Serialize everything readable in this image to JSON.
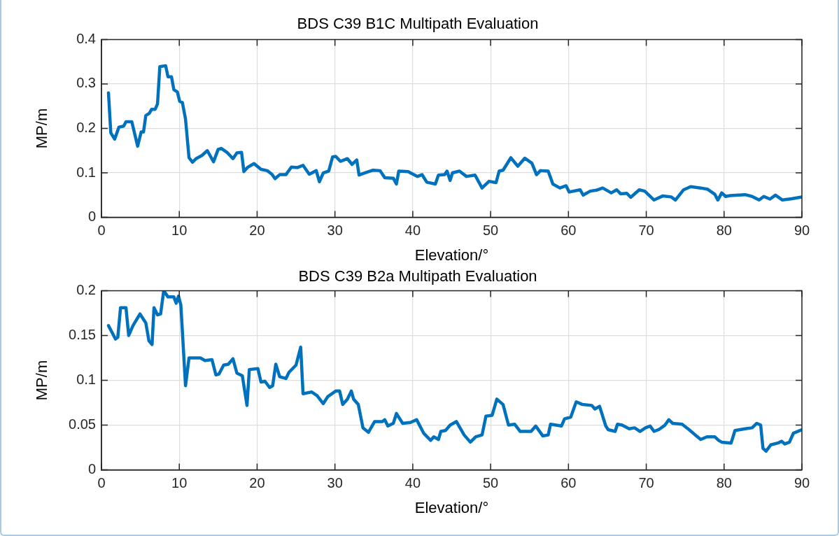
{
  "chart_data": [
    {
      "type": "line",
      "title": "BDS C39 B1C Multipath Evaluation",
      "xlabel": "Elevation/°",
      "ylabel": "MP/m",
      "x": [
        0.9,
        1.2,
        1.7,
        2.25,
        2.85,
        3.15,
        3.9,
        4.65,
        5.1,
        5.4,
        5.7,
        6.15,
        6.45,
        6.9,
        7.2,
        7.5,
        8.25,
        8.55,
        9.0,
        9.3,
        9.75,
        10.05,
        10.4,
        10.8,
        11.25,
        11.7,
        12.15,
        12.9,
        13.6,
        14.4,
        15.0,
        15.4,
        16.2,
        16.9,
        17.4,
        18.0,
        18.3,
        18.75,
        19.6,
        20.5,
        21.3,
        21.9,
        22.3,
        22.9,
        23.7,
        24.4,
        25.2,
        25.9,
        26.7,
        27.6,
        28.0,
        28.5,
        29.2,
        29.7,
        30.1,
        30.7,
        31.6,
        32.2,
        32.8,
        33.1,
        33.7,
        34.9,
        35.8,
        36.4,
        37.5,
        37.9,
        38.2,
        39.4,
        40.6,
        41.2,
        41.8,
        42.9,
        43.3,
        44.1,
        44.4,
        44.8,
        45.1,
        46.0,
        46.9,
        48.0,
        48.9,
        49.8,
        50.7,
        51.1,
        51.6,
        52.6,
        53.5,
        54.4,
        55.3,
        55.9,
        56.4,
        57.4,
        58.0,
        58.9,
        59.7,
        60.1,
        61.5,
        61.9,
        62.8,
        63.6,
        64.4,
        65.5,
        66.2,
        66.7,
        67.5,
        68.0,
        69.1,
        69.8,
        71.0,
        72.1,
        73.2,
        73.75,
        74.8,
        75.7,
        77.0,
        77.9,
        78.8,
        79.2,
        79.7,
        80.2,
        80.8,
        82.7,
        83.6,
        84.5,
        85.1,
        85.9,
        86.6,
        87.5,
        88.7,
        90.0
      ],
      "series": [
        {
          "color": "#0072bd",
          "values": [
            0.28,
            0.19,
            0.176,
            0.203,
            0.205,
            0.215,
            0.215,
            0.16,
            0.192,
            0.192,
            0.229,
            0.234,
            0.243,
            0.243,
            0.255,
            0.339,
            0.341,
            0.316,
            0.316,
            0.287,
            0.282,
            0.261,
            0.258,
            0.221,
            0.134,
            0.124,
            0.132,
            0.139,
            0.15,
            0.125,
            0.153,
            0.155,
            0.145,
            0.132,
            0.145,
            0.146,
            0.103,
            0.112,
            0.121,
            0.108,
            0.105,
            0.097,
            0.087,
            0.096,
            0.096,
            0.113,
            0.112,
            0.117,
            0.097,
            0.105,
            0.08,
            0.1,
            0.104,
            0.136,
            0.137,
            0.126,
            0.132,
            0.119,
            0.129,
            0.095,
            0.099,
            0.106,
            0.105,
            0.089,
            0.088,
            0.075,
            0.104,
            0.103,
            0.092,
            0.096,
            0.079,
            0.075,
            0.095,
            0.096,
            0.104,
            0.083,
            0.1,
            0.104,
            0.092,
            0.095,
            0.066,
            0.081,
            0.078,
            0.104,
            0.106,
            0.134,
            0.115,
            0.133,
            0.122,
            0.096,
            0.105,
            0.104,
            0.075,
            0.066,
            0.071,
            0.057,
            0.062,
            0.05,
            0.059,
            0.061,
            0.066,
            0.055,
            0.062,
            0.053,
            0.054,
            0.045,
            0.062,
            0.059,
            0.039,
            0.048,
            0.046,
            0.039,
            0.062,
            0.069,
            0.066,
            0.063,
            0.052,
            0.039,
            0.055,
            0.047,
            0.049,
            0.051,
            0.047,
            0.039,
            0.047,
            0.041,
            0.05,
            0.039,
            0.042,
            0.046
          ]
        }
      ],
      "xlim": [
        0,
        90
      ],
      "xticks": [
        0,
        10,
        20,
        30,
        40,
        50,
        60,
        70,
        80,
        90
      ],
      "ylim": [
        0,
        0.4
      ],
      "yticks": [
        0,
        0.1,
        0.2,
        0.3,
        0.4
      ],
      "grid": true
    },
    {
      "type": "line",
      "title": "BDS C39 B2a Multipath Evaluation",
      "xlabel": "Elevation/°",
      "ylabel": "MP/m",
      "x": [
        0.9,
        1.8,
        2.1,
        2.45,
        3.15,
        3.5,
        4.05,
        4.95,
        5.7,
        6.1,
        6.5,
        6.75,
        7.2,
        7.6,
        8.0,
        8.55,
        9.3,
        9.6,
        9.9,
        10.2,
        10.8,
        11.25,
        11.85,
        12.7,
        13.3,
        14.2,
        14.7,
        15.1,
        15.7,
        16.3,
        16.9,
        17.4,
        18.1,
        18.7,
        19.0,
        20.1,
        20.5,
        21.0,
        21.6,
        22.0,
        22.4,
        22.9,
        23.7,
        24.1,
        25.0,
        25.6,
        25.9,
        27.0,
        27.7,
        28.5,
        29.1,
        30.1,
        30.6,
        31.0,
        31.6,
        32.1,
        32.4,
        33.0,
        33.6,
        34.3,
        35.1,
        36.1,
        36.4,
        36.8,
        37.5,
        37.9,
        38.7,
        39.7,
        40.5,
        41.4,
        42.3,
        42.7,
        43.3,
        43.6,
        44.2,
        44.8,
        45.6,
        46.6,
        47.4,
        48.1,
        48.9,
        49.4,
        50.2,
        50.8,
        51.6,
        52.3,
        53.1,
        53.8,
        55.2,
        55.8,
        56.7,
        57.4,
        57.7,
        59.1,
        59.5,
        60.3,
        61.0,
        61.8,
        63.0,
        63.4,
        64.0,
        64.8,
        65.1,
        66.0,
        66.3,
        66.9,
        67.8,
        68.5,
        69.2,
        69.9,
        70.5,
        71.0,
        71.6,
        72.4,
        72.9,
        73.4,
        74.6,
        75.5,
        76.3,
        77.0,
        77.8,
        78.8,
        79.3,
        79.7,
        80.9,
        81.4,
        82.7,
        83.6,
        84.2,
        84.7,
        85.0,
        85.4,
        86.0,
        86.9,
        87.4,
        87.8,
        88.4,
        88.9,
        90.0
      ],
      "series": [
        {
          "color": "#0072bd",
          "values": [
            0.161,
            0.146,
            0.148,
            0.181,
            0.181,
            0.15,
            0.161,
            0.174,
            0.164,
            0.144,
            0.14,
            0.181,
            0.173,
            0.174,
            0.2,
            0.193,
            0.193,
            0.186,
            0.194,
            0.184,
            0.094,
            0.125,
            0.125,
            0.125,
            0.122,
            0.123,
            0.106,
            0.107,
            0.117,
            0.118,
            0.124,
            0.108,
            0.105,
            0.072,
            0.112,
            0.113,
            0.098,
            0.099,
            0.092,
            0.094,
            0.118,
            0.104,
            0.102,
            0.109,
            0.117,
            0.137,
            0.085,
            0.087,
            0.083,
            0.074,
            0.082,
            0.088,
            0.088,
            0.073,
            0.079,
            0.088,
            0.079,
            0.073,
            0.047,
            0.042,
            0.054,
            0.054,
            0.056,
            0.049,
            0.052,
            0.063,
            0.052,
            0.053,
            0.056,
            0.041,
            0.033,
            0.037,
            0.034,
            0.043,
            0.044,
            0.05,
            0.054,
            0.039,
            0.031,
            0.037,
            0.039,
            0.06,
            0.061,
            0.079,
            0.073,
            0.05,
            0.051,
            0.043,
            0.043,
            0.049,
            0.038,
            0.039,
            0.051,
            0.049,
            0.057,
            0.059,
            0.076,
            0.073,
            0.072,
            0.068,
            0.071,
            0.049,
            0.045,
            0.043,
            0.051,
            0.05,
            0.046,
            0.047,
            0.043,
            0.047,
            0.049,
            0.043,
            0.045,
            0.05,
            0.056,
            0.052,
            0.051,
            0.045,
            0.039,
            0.034,
            0.037,
            0.037,
            0.033,
            0.031,
            0.03,
            0.044,
            0.046,
            0.047,
            0.052,
            0.05,
            0.024,
            0.021,
            0.028,
            0.03,
            0.032,
            0.029,
            0.031,
            0.041,
            0.045
          ]
        }
      ],
      "xlim": [
        0,
        90
      ],
      "xticks": [
        0,
        10,
        20,
        30,
        40,
        50,
        60,
        70,
        80,
        90
      ],
      "ylim": [
        0,
        0.2
      ],
      "yticks": [
        0,
        0.05,
        0.1,
        0.15,
        0.2
      ],
      "grid": true
    }
  ]
}
